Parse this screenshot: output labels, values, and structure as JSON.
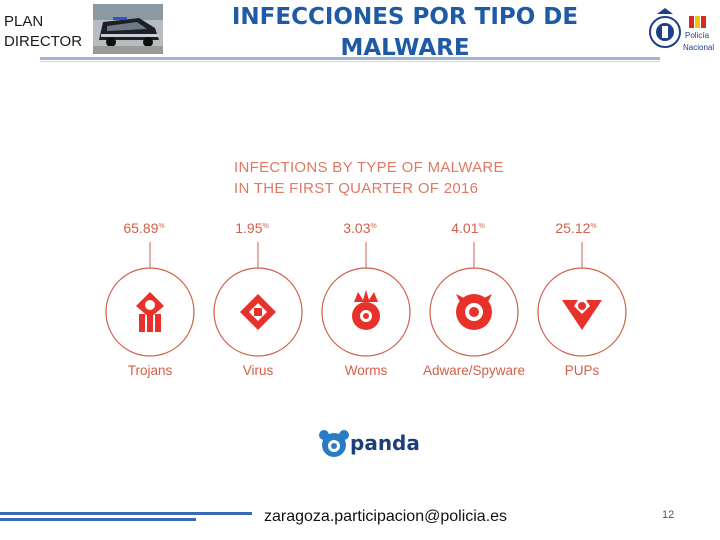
{
  "header": {
    "plan_line1": "PLAN",
    "plan_line2": "DIRECTOR",
    "title_line1": "INFECCIONES POR TIPO DE",
    "title_line2": "MALWARE",
    "crest_text_line1": "Policía",
    "crest_text_line2": "Nacional"
  },
  "colors": {
    "title_blue": "#1f5aa6",
    "chart_red": "#d0604a",
    "accent_red": "#e8312a",
    "panda_blue": "#2a7bc4"
  },
  "chart_data": {
    "type": "icon-percentage",
    "title_line1": "INFECTIONS BY TYPE OF MALWARE",
    "title_line2": "IN THE FIRST QUARTER OF 2016",
    "unit": "%",
    "categories": [
      "Trojans",
      "Virus",
      "Worms",
      "Adware/Spyware",
      "PUPs"
    ],
    "values": [
      65.89,
      1.95,
      3.03,
      4.01,
      25.12
    ],
    "value_labels": [
      "65.89",
      "1.95",
      "3.03",
      "4.01",
      "25.12"
    ],
    "icons": [
      "trojan-icon",
      "virus-icon",
      "worm-icon",
      "adware-icon",
      "pup-icon"
    ]
  },
  "logo": {
    "text": "panda"
  },
  "footer": {
    "email": "zaragoza.participacion@policia.es",
    "page_number": "12"
  }
}
